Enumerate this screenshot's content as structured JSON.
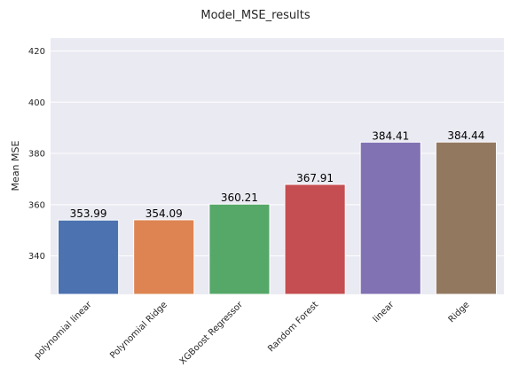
{
  "chart_data": {
    "type": "bar",
    "title": "Model_MSE_results",
    "xlabel": "",
    "ylabel": "Mean MSE",
    "categories": [
      "polynomial linear",
      "Polynomial Ridge",
      "XGBoost Regressor",
      "Random Forest",
      "linear",
      "Ridge"
    ],
    "values": [
      353.99,
      354.09,
      360.21,
      367.91,
      384.41,
      384.44
    ],
    "data_labels": [
      "353.99",
      "354.09",
      "360.21",
      "367.91",
      "384.41",
      "384.44"
    ],
    "colors": [
      "#4c72b0",
      "#dd8452",
      "#55a868",
      "#c44e52",
      "#8172b3",
      "#937860"
    ],
    "ylim": [
      325,
      425
    ],
    "yticks": [
      340,
      360,
      380,
      400,
      420
    ],
    "grid": true,
    "background": "#eaeaf2"
  }
}
